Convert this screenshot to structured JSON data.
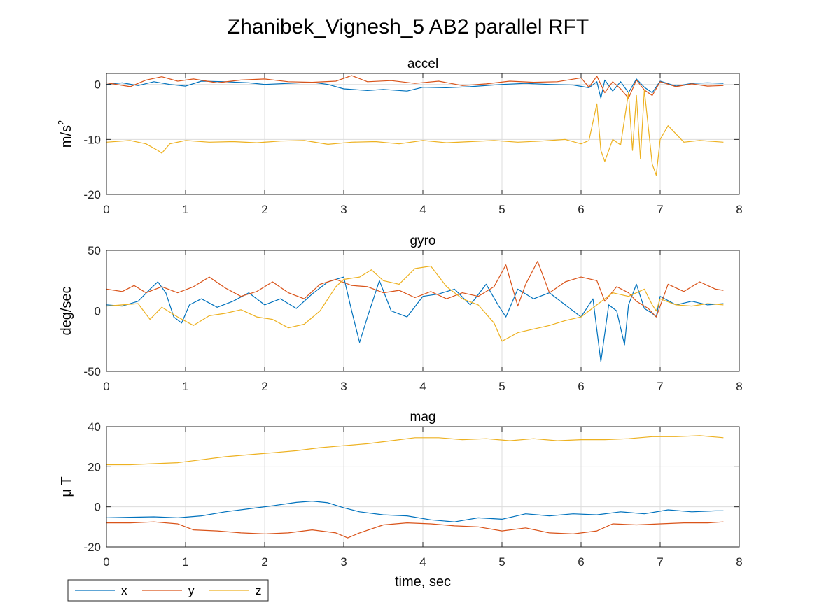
{
  "chart_data": {
    "type": "line",
    "title": "Zhanibek_Vignesh_5 AB2 parallel RFT",
    "xlabel": "time, sec",
    "grid": true,
    "legend": {
      "placement": "bottom-left",
      "orientation": "horizontal",
      "entries": [
        "x",
        "y",
        "z"
      ]
    },
    "colors": {
      "x": "#0072BD",
      "y": "#D95319",
      "z": "#EDB120",
      "grid": "#dcdcdc",
      "axes": "#262626"
    },
    "xlim": [
      0,
      8
    ],
    "xticks": [
      "0",
      "1",
      "2",
      "3",
      "4",
      "5",
      "6",
      "7",
      "8"
    ],
    "subplots": [
      {
        "title": "accel",
        "ylabel_base": "m/s",
        "ylabel_sup": "2",
        "ylim": [
          -20,
          2
        ],
        "yticks": [
          {
            "value": -20,
            "label": "-20"
          },
          {
            "value": -10,
            "label": "-10"
          },
          {
            "value": 0,
            "label": "0"
          }
        ],
        "series": [
          {
            "name": "x",
            "x": [
              0,
              0.2,
              0.4,
              0.6,
              0.8,
              1.0,
              1.2,
              1.5,
              1.8,
              2.0,
              2.3,
              2.6,
              2.8,
              3.0,
              3.3,
              3.5,
              3.8,
              4.0,
              4.3,
              4.6,
              5.0,
              5.3,
              5.6,
              5.9,
              6.1,
              6.2,
              6.25,
              6.3,
              6.4,
              6.5,
              6.6,
              6.7,
              6.8,
              6.9,
              7.0,
              7.2,
              7.4,
              7.6,
              7.8
            ],
            "y": [
              0,
              0.3,
              -0.2,
              0.5,
              0,
              -0.3,
              0.6,
              0.5,
              0.3,
              0,
              0.2,
              0.4,
              0,
              -0.8,
              -1.1,
              -0.9,
              -1.2,
              -0.5,
              -0.6,
              -0.4,
              0,
              0.2,
              0,
              -0.1,
              -0.6,
              0.5,
              -2.5,
              0.8,
              -1.2,
              0.5,
              -1.5,
              1.0,
              -0.5,
              -1.5,
              0.6,
              -0.3,
              0.2,
              0.3,
              0.2
            ]
          },
          {
            "name": "y",
            "x": [
              0,
              0.3,
              0.5,
              0.7,
              0.9,
              1.1,
              1.4,
              1.7,
              2.0,
              2.3,
              2.6,
              2.9,
              3.1,
              3.3,
              3.6,
              3.9,
              4.2,
              4.5,
              4.8,
              5.1,
              5.4,
              5.7,
              6.0,
              6.1,
              6.2,
              6.3,
              6.4,
              6.5,
              6.6,
              6.7,
              6.8,
              6.9,
              7.0,
              7.2,
              7.4,
              7.6,
              7.8
            ],
            "y": [
              0.3,
              -0.4,
              0.8,
              1.4,
              0.6,
              1.0,
              0.3,
              0.8,
              1.0,
              0.5,
              0.4,
              0.6,
              1.6,
              0.5,
              0.7,
              0.2,
              0.6,
              -0.2,
              0.1,
              0.6,
              0.4,
              0.5,
              1.2,
              -0.5,
              1.5,
              -1.5,
              0.5,
              -0.8,
              -2.5,
              0.8,
              -1.0,
              -2.0,
              0.5,
              -0.4,
              0.1,
              -0.3,
              -0.2
            ]
          },
          {
            "name": "z",
            "x": [
              0,
              0.3,
              0.5,
              0.65,
              0.7,
              0.8,
              1.0,
              1.3,
              1.6,
              1.9,
              2.2,
              2.5,
              2.8,
              3.1,
              3.4,
              3.7,
              4.0,
              4.3,
              4.6,
              4.9,
              5.2,
              5.5,
              5.8,
              6.0,
              6.1,
              6.2,
              6.25,
              6.3,
              6.4,
              6.5,
              6.6,
              6.65,
              6.7,
              6.75,
              6.8,
              6.9,
              6.95,
              7.0,
              7.1,
              7.3,
              7.5,
              7.8
            ],
            "y": [
              -10.5,
              -10.2,
              -10.8,
              -12.0,
              -12.5,
              -10.8,
              -10.2,
              -10.5,
              -10.4,
              -10.6,
              -10.3,
              -10.2,
              -10.9,
              -10.5,
              -10.4,
              -10.8,
              -10.2,
              -10.6,
              -10.4,
              -10.2,
              -10.5,
              -10.3,
              -10.0,
              -10.8,
              -10.2,
              -3.5,
              -12,
              -14,
              -10,
              -11,
              -1.5,
              -12,
              -2.0,
              -13.5,
              -1.0,
              -14.5,
              -16.5,
              -10.0,
              -7.5,
              -10.5,
              -10.2,
              -10.5
            ]
          }
        ]
      },
      {
        "title": "gyro",
        "ylabel_base": "deg/sec",
        "ylabel_sup": "",
        "ylim": [
          -50,
          50
        ],
        "yticks": [
          {
            "value": -50,
            "label": "-50"
          },
          {
            "value": 0,
            "label": "0"
          },
          {
            "value": 50,
            "label": "50"
          }
        ],
        "series": [
          {
            "name": "x",
            "x": [
              0,
              0.2,
              0.4,
              0.55,
              0.65,
              0.75,
              0.85,
              0.95,
              1.05,
              1.2,
              1.4,
              1.6,
              1.8,
              2.0,
              2.2,
              2.4,
              2.6,
              2.8,
              3.0,
              3.1,
              3.2,
              3.3,
              3.45,
              3.6,
              3.8,
              4.0,
              4.2,
              4.4,
              4.6,
              4.8,
              4.95,
              5.05,
              5.2,
              5.4,
              5.6,
              5.8,
              6.0,
              6.15,
              6.25,
              6.35,
              6.45,
              6.55,
              6.6,
              6.7,
              6.8,
              6.9,
              6.95,
              7.0,
              7.2,
              7.4,
              7.6,
              7.8
            ],
            "y": [
              5,
              4,
              8,
              18,
              24,
              15,
              -5,
              -10,
              5,
              10,
              3,
              8,
              15,
              5,
              10,
              2,
              14,
              24,
              28,
              0,
              -26,
              -5,
              25,
              0,
              -5,
              12,
              14,
              18,
              5,
              22,
              5,
              -5,
              18,
              10,
              15,
              5,
              -5,
              10,
              -42,
              5,
              0,
              -28,
              5,
              22,
              2,
              -2,
              -5,
              12,
              5,
              8,
              5,
              6
            ]
          },
          {
            "name": "y",
            "x": [
              0,
              0.2,
              0.35,
              0.5,
              0.7,
              0.9,
              1.1,
              1.3,
              1.5,
              1.7,
              1.9,
              2.1,
              2.3,
              2.5,
              2.7,
              2.9,
              3.1,
              3.3,
              3.5,
              3.7,
              3.9,
              4.1,
              4.3,
              4.5,
              4.7,
              4.9,
              5.05,
              5.2,
              5.3,
              5.45,
              5.6,
              5.8,
              6.0,
              6.2,
              6.3,
              6.45,
              6.6,
              6.7,
              6.85,
              6.95,
              7.1,
              7.3,
              7.5,
              7.7,
              7.8
            ],
            "y": [
              18,
              16,
              21,
              15,
              20,
              15,
              20,
              28,
              19,
              12,
              16,
              24,
              15,
              10,
              22,
              26,
              21,
              20,
              15,
              17,
              11,
              16,
              10,
              15,
              12,
              20,
              38,
              4,
              22,
              41,
              15,
              24,
              28,
              25,
              8,
              20,
              15,
              8,
              2,
              -5,
              22,
              16,
              24,
              18,
              17
            ]
          },
          {
            "name": "z",
            "x": [
              0,
              0.2,
              0.4,
              0.55,
              0.7,
              0.9,
              1.1,
              1.3,
              1.5,
              1.7,
              1.9,
              2.1,
              2.3,
              2.5,
              2.7,
              2.9,
              3.0,
              3.2,
              3.35,
              3.5,
              3.7,
              3.9,
              4.1,
              4.3,
              4.5,
              4.7,
              4.9,
              5.0,
              5.2,
              5.4,
              5.6,
              5.8,
              6.0,
              6.2,
              6.4,
              6.6,
              6.8,
              6.9,
              6.95,
              7.0,
              7.2,
              7.4,
              7.6,
              7.8
            ],
            "y": [
              4,
              5,
              6,
              -7,
              3,
              -5,
              -12,
              -4,
              -2,
              1,
              -5,
              -7,
              -14,
              -11,
              0,
              20,
              26,
              28,
              34,
              25,
              22,
              35,
              37,
              20,
              10,
              5,
              -10,
              -25,
              -18,
              -15,
              -12,
              -8,
              -5,
              5,
              15,
              12,
              18,
              5,
              0,
              10,
              5,
              4,
              6,
              5
            ]
          }
        ]
      },
      {
        "title": "mag",
        "ylabel_base": "μ T",
        "ylabel_sup": "",
        "ylim": [
          -20,
          40
        ],
        "yticks": [
          {
            "value": -20,
            "label": "-20"
          },
          {
            "value": 0,
            "label": "0"
          },
          {
            "value": 20,
            "label": "20"
          },
          {
            "value": 40,
            "label": "40"
          }
        ],
        "series": [
          {
            "name": "x",
            "x": [
              0,
              0.3,
              0.6,
              0.9,
              1.2,
              1.5,
              1.8,
              2.1,
              2.4,
              2.6,
              2.8,
              3.0,
              3.2,
              3.5,
              3.8,
              4.1,
              4.4,
              4.7,
              5.0,
              5.3,
              5.6,
              5.9,
              6.2,
              6.5,
              6.8,
              7.1,
              7.4,
              7.7,
              7.8
            ],
            "y": [
              -5.5,
              -5.2,
              -5.0,
              -5.5,
              -4.5,
              -2.5,
              -1.0,
              0.5,
              2.2,
              2.8,
              2.0,
              -0.5,
              -2.5,
              -4.0,
              -4.5,
              -6.5,
              -7.5,
              -5.5,
              -6.2,
              -3.5,
              -4.5,
              -3.5,
              -4.0,
              -2.5,
              -3.5,
              -1.5,
              -2.5,
              -2.0,
              -2.0
            ]
          },
          {
            "name": "y",
            "x": [
              0,
              0.3,
              0.6,
              0.9,
              1.1,
              1.4,
              1.7,
              2.0,
              2.3,
              2.6,
              2.9,
              3.05,
              3.2,
              3.5,
              3.8,
              4.1,
              4.4,
              4.7,
              5.0,
              5.3,
              5.6,
              5.9,
              6.2,
              6.4,
              6.7,
              7.0,
              7.3,
              7.6,
              7.8
            ],
            "y": [
              -8,
              -8,
              -7.5,
              -8.5,
              -11.5,
              -12,
              -13,
              -13.5,
              -13,
              -11.5,
              -13,
              -15.5,
              -13,
              -9,
              -8,
              -8.5,
              -9.5,
              -10,
              -12,
              -10.5,
              -13,
              -13.5,
              -12,
              -8.5,
              -9,
              -8.5,
              -8,
              -8,
              -7.5
            ]
          },
          {
            "name": "z",
            "x": [
              0,
              0.3,
              0.6,
              0.9,
              1.2,
              1.5,
              1.8,
              2.1,
              2.4,
              2.7,
              3.0,
              3.3,
              3.6,
              3.9,
              4.2,
              4.5,
              4.8,
              5.1,
              5.4,
              5.7,
              6.0,
              6.3,
              6.6,
              6.9,
              7.2,
              7.5,
              7.8
            ],
            "y": [
              21,
              21,
              21.5,
              22,
              23.5,
              25,
              26,
              27,
              28,
              29.5,
              30.5,
              31.5,
              33,
              34.5,
              34.5,
              33.5,
              34,
              33,
              34,
              33,
              33.5,
              33.5,
              34,
              35,
              35,
              35.5,
              34.5
            ]
          }
        ]
      }
    ]
  }
}
